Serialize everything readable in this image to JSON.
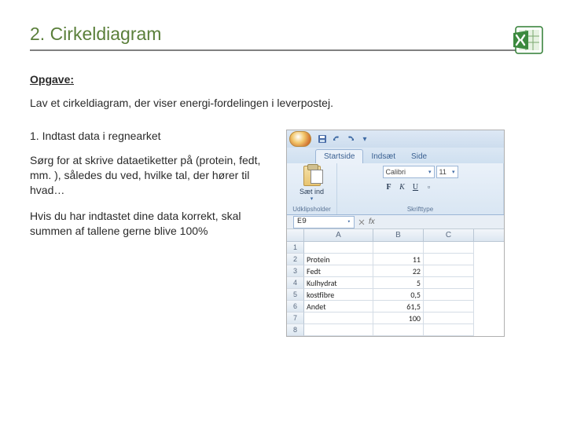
{
  "title": "2. Cirkeldiagram",
  "subheading": "Opgave:",
  "task": "Lav et cirkeldiagram, der viser energi-fordelingen i leverpostej.",
  "step_heading": "1. Indtast data i regnearket",
  "para1": "Sørg for at skrive dataetiketter på (protein, fedt, mm. ), således du ved, hvilke tal, der hører til hvad…",
  "para2": "Hvis du har indtastet dine data korrekt, skal summen af tallene gerne blive 100%",
  "excel": {
    "tabs": {
      "active": "Startside",
      "t2": "Indsæt",
      "t3": "Side"
    },
    "paste_label": "Sæt ind",
    "group_clipboard": "Udklipsholder",
    "group_font": "Skrifttype",
    "font_name": "Calibri",
    "font_size": "11",
    "biu": {
      "b": "F",
      "i": "K",
      "u": "U"
    },
    "name_box": "E9",
    "columns": [
      "A",
      "B",
      "C"
    ],
    "rows": [
      {
        "n": "1",
        "a": "",
        "b": ""
      },
      {
        "n": "2",
        "a": "Protein",
        "b": "11"
      },
      {
        "n": "3",
        "a": "Fedt",
        "b": "22"
      },
      {
        "n": "4",
        "a": "Kulhydrat",
        "b": "5"
      },
      {
        "n": "5",
        "a": "kostfibre",
        "b": "0,5"
      },
      {
        "n": "6",
        "a": "Andet",
        "b": "61,5"
      },
      {
        "n": "7",
        "a": "",
        "b": "100"
      },
      {
        "n": "8",
        "a": "",
        "b": ""
      }
    ]
  }
}
